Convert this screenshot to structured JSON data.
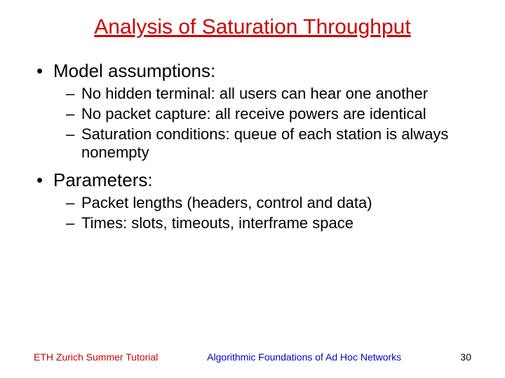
{
  "title": {
    "text": "Analysis of Saturation Throughput",
    "color": "#cc0000",
    "fontsize": 30
  },
  "content": {
    "color": "#000000",
    "l1_fontsize": 26,
    "l2_fontsize": 22,
    "items": [
      {
        "label": "Model assumptions:",
        "sub": [
          "No hidden terminal: all users can hear one another",
          "No packet capture: all receive powers are identical",
          "Saturation conditions: queue of each station is always nonempty"
        ]
      },
      {
        "label": "Parameters:",
        "sub": [
          "Packet lengths (headers, control and data)",
          "Times: slots, timeouts, interframe space"
        ]
      }
    ]
  },
  "footer": {
    "left": {
      "text": "ETH Zurich Summer Tutorial",
      "color": "#cc0000",
      "fontsize": 14
    },
    "center": {
      "text": "Algorithmic Foundations of Ad Hoc Networks",
      "color": "#0000cc",
      "fontsize": 14
    },
    "right": {
      "text": "30",
      "color": "#000000",
      "fontsize": 14
    }
  },
  "background_color": "#ffffff"
}
